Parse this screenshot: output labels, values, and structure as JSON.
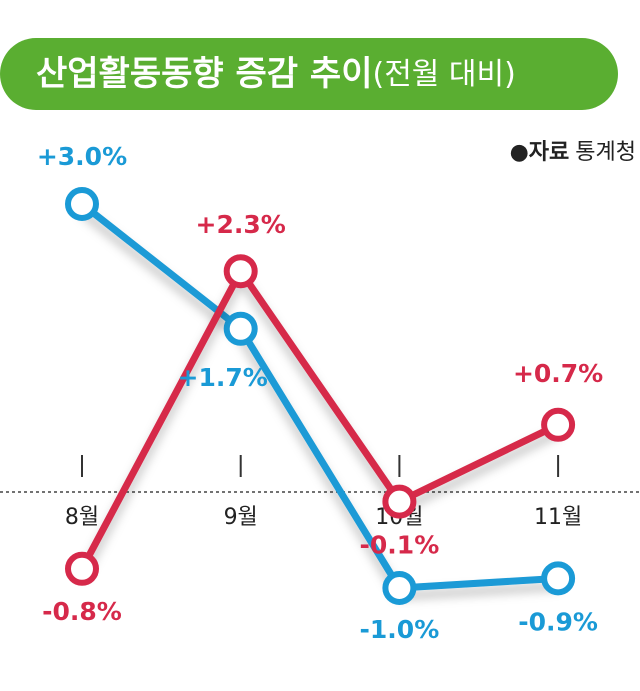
{
  "chart_data": {
    "type": "line",
    "title": "산업활동동향 증감 추이",
    "subtitle": "(전월 대비)",
    "source_label": "자료",
    "source": "통계청",
    "categories": [
      "8월",
      "9월",
      "10월",
      "11월"
    ],
    "series": [
      {
        "color": "#1a9ad6",
        "values": [
          3.0,
          1.7,
          -1.0,
          -0.9
        ],
        "value_labels": [
          "+3.0%",
          "+1.7%",
          "-1.0%",
          "-0.9%"
        ]
      },
      {
        "color": "#d6294a",
        "values": [
          -0.8,
          2.3,
          -0.1,
          0.7
        ],
        "value_labels": [
          "-0.8%",
          "+2.3%",
          "-0.1%",
          "+0.7%"
        ]
      }
    ]
  }
}
